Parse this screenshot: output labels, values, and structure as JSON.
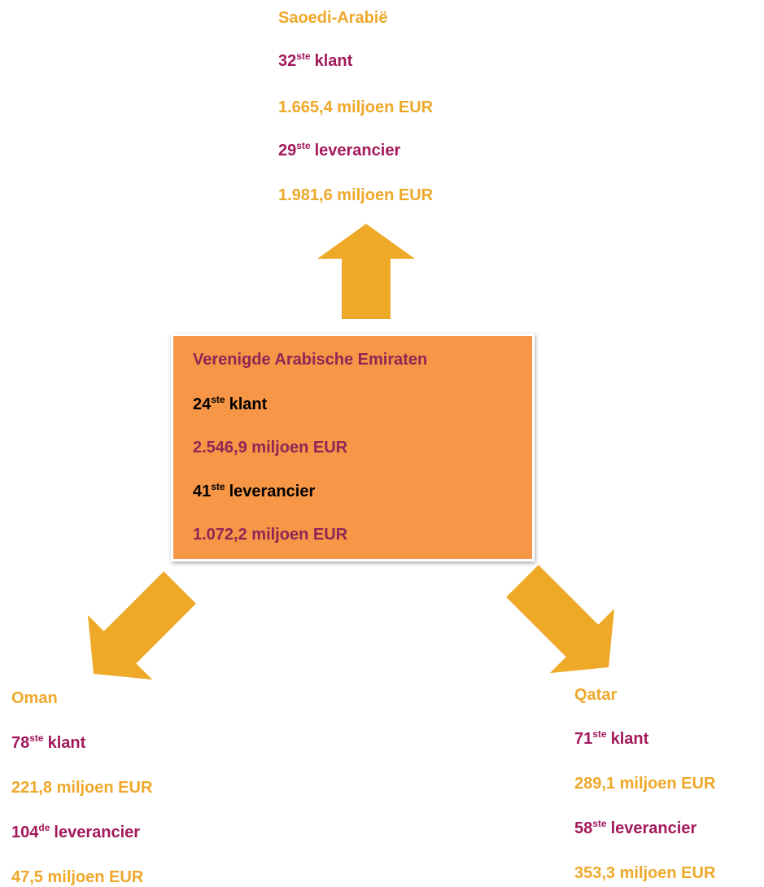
{
  "nodes": [
    {
      "name": "Saoedi-Arabië",
      "customer_rank": "32",
      "customer_suffix": "ste",
      "customer_label": "klant",
      "customer_value": "1.665,4 miljoen EUR",
      "supplier_rank": "29",
      "supplier_suffix": "ste",
      "supplier_label": "leverancier",
      "supplier_value": "1.981,6 miljoen EUR"
    },
    {
      "name": "Verenigde Arabische Emiraten",
      "customer_rank": "24",
      "customer_suffix": "ste",
      "customer_label": "klant",
      "customer_value": "2.546,9 miljoen EUR",
      "supplier_rank": "41",
      "supplier_suffix": "ste",
      "supplier_label": "leverancier",
      "supplier_value": "1.072,2 miljoen EUR"
    },
    {
      "name": "Oman",
      "customer_rank": "78",
      "customer_suffix": "ste",
      "customer_label": "klant",
      "customer_value": "221,8 miljoen EUR",
      "supplier_rank": "104",
      "supplier_suffix": "de",
      "supplier_label": "leverancier",
      "supplier_value": "47,5 miljoen EUR"
    },
    {
      "name": "Qatar",
      "customer_rank": "71",
      "customer_suffix": "ste",
      "customer_label": "klant",
      "customer_value": "289,1 miljoen EUR",
      "supplier_rank": "58",
      "supplier_suffix": "ste",
      "supplier_label": "leverancier",
      "supplier_value": "353,3 miljoen EUR"
    }
  ]
}
